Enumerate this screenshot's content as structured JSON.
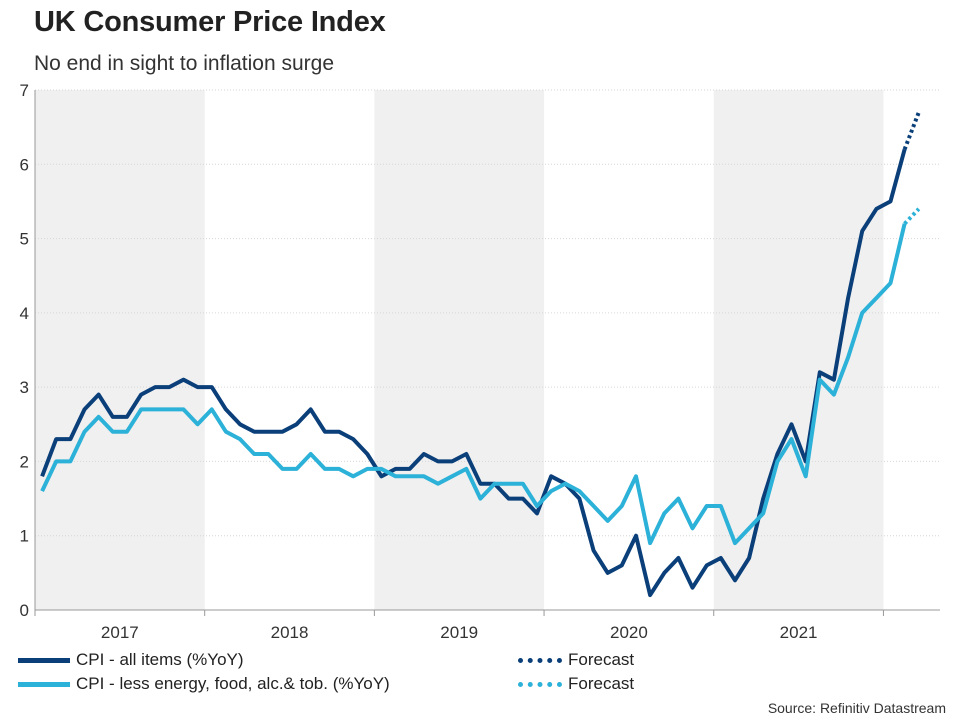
{
  "header": {
    "title": "UK Consumer Price Index",
    "subtitle": "No end in sight to inflation surge"
  },
  "source": "Source: Refinitiv Datastream",
  "legend": [
    {
      "label": "CPI - all items (%YoY)",
      "color": "#0a3f7a",
      "style": "solid"
    },
    {
      "label": "CPI - less energy, food, alc.& tob. (%YoY)",
      "color": "#2cb1d8",
      "style": "solid"
    },
    {
      "label": "Forecast",
      "color": "#0a3f7a",
      "style": "dotted"
    },
    {
      "label": "Forecast",
      "color": "#2cb1d8",
      "style": "dotted"
    }
  ],
  "chart_data": {
    "type": "line",
    "title": "UK Consumer Price Index",
    "subtitle": "No end in sight to inflation surge",
    "ylim": [
      0,
      7
    ],
    "yticks": [
      "0",
      "1",
      "2",
      "3",
      "4",
      "5",
      "6",
      "7"
    ],
    "grid": true,
    "x_start": "2017-01",
    "x_end": "2022-03",
    "year_labels": [
      "2017",
      "2018",
      "2019",
      "2020",
      "2021"
    ],
    "shaded_years": [
      "2017",
      "2019",
      "2021"
    ],
    "series": [
      {
        "name": "CPI - all items (%YoY)",
        "color": "#0a3f7a",
        "style": "solid",
        "values": [
          1.8,
          2.3,
          2.3,
          2.7,
          2.9,
          2.6,
          2.6,
          2.9,
          3.0,
          3.0,
          3.1,
          3.0,
          3.0,
          2.7,
          2.5,
          2.4,
          2.4,
          2.4,
          2.5,
          2.7,
          2.4,
          2.4,
          2.3,
          2.1,
          1.8,
          1.9,
          1.9,
          2.1,
          2.0,
          2.0,
          2.1,
          1.7,
          1.7,
          1.5,
          1.5,
          1.3,
          1.8,
          1.7,
          1.5,
          0.8,
          0.5,
          0.6,
          1.0,
          0.2,
          0.5,
          0.7,
          0.3,
          0.6,
          0.7,
          0.4,
          0.7,
          1.5,
          2.1,
          2.5,
          2.0,
          3.2,
          3.1,
          4.2,
          5.1,
          5.4,
          5.5,
          6.2
        ]
      },
      {
        "name": "CPI - less energy, food, alc.& tob. (%YoY)",
        "color": "#2cb1d8",
        "style": "solid",
        "values": [
          1.6,
          2.0,
          2.0,
          2.4,
          2.6,
          2.4,
          2.4,
          2.7,
          2.7,
          2.7,
          2.7,
          2.5,
          2.7,
          2.4,
          2.3,
          2.1,
          2.1,
          1.9,
          1.9,
          2.1,
          1.9,
          1.9,
          1.8,
          1.9,
          1.9,
          1.8,
          1.8,
          1.8,
          1.7,
          1.8,
          1.9,
          1.5,
          1.7,
          1.7,
          1.7,
          1.4,
          1.6,
          1.7,
          1.6,
          1.4,
          1.2,
          1.4,
          1.8,
          0.9,
          1.3,
          1.5,
          1.1,
          1.4,
          1.4,
          0.9,
          1.1,
          1.3,
          2.0,
          2.3,
          1.8,
          3.1,
          2.9,
          3.4,
          4.0,
          4.2,
          4.4,
          5.2
        ]
      },
      {
        "name": "Forecast",
        "color": "#0a3f7a",
        "style": "dotted",
        "start_month_index": 61,
        "values": [
          6.2,
          6.7
        ]
      },
      {
        "name": "Forecast",
        "color": "#2cb1d8",
        "style": "dotted",
        "start_month_index": 61,
        "values": [
          5.2,
          5.4
        ]
      }
    ]
  }
}
